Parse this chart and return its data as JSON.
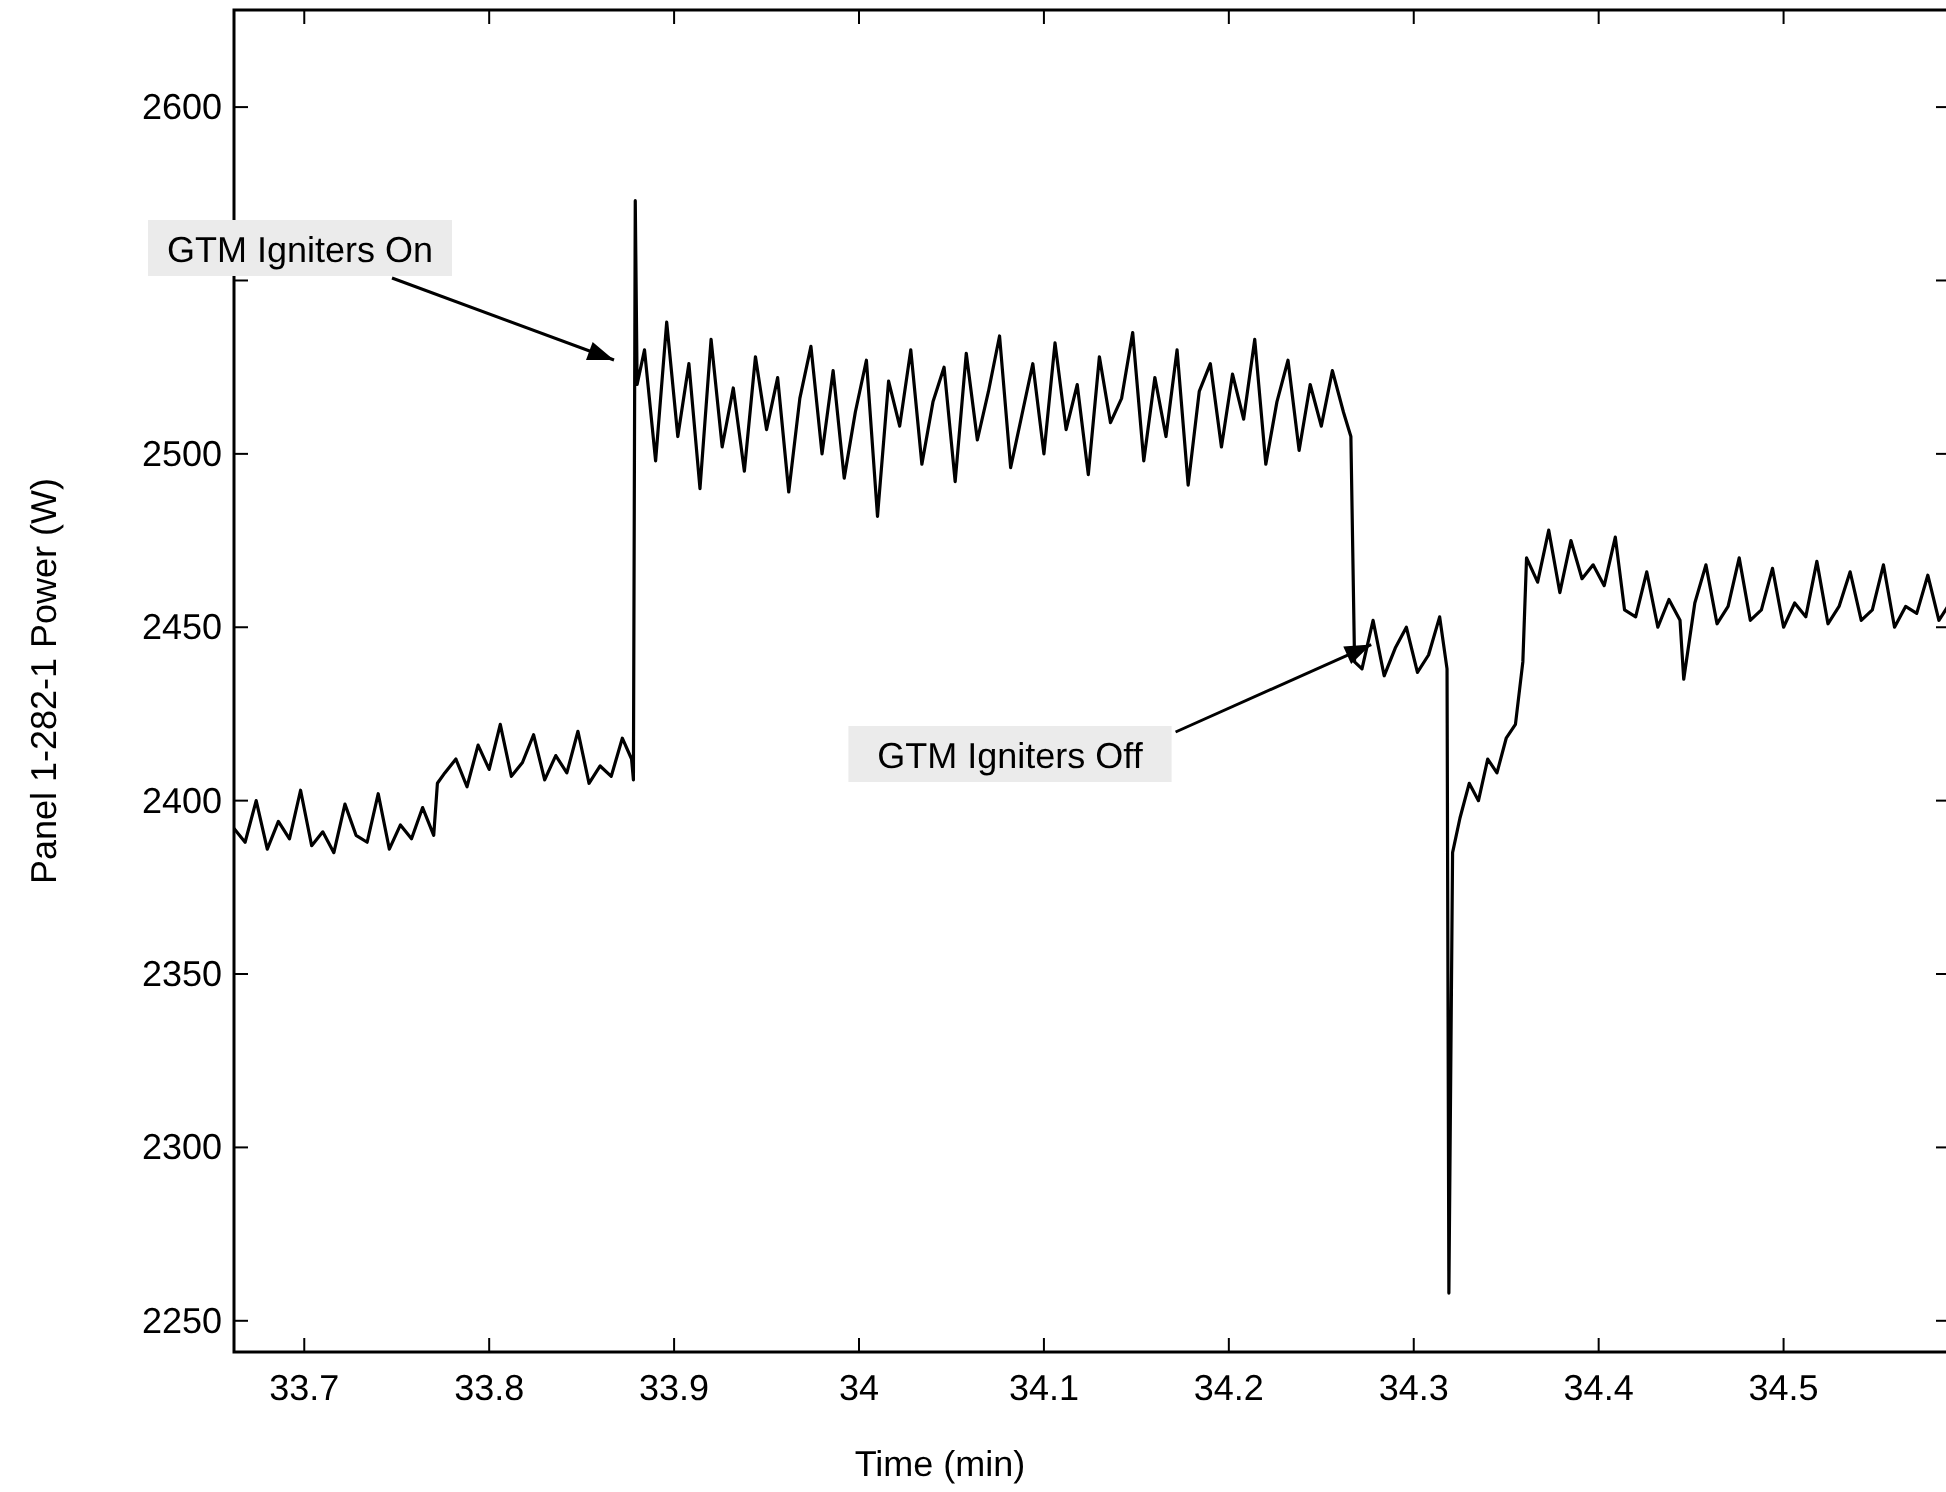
{
  "chart_data": {
    "type": "line",
    "xlabel": "Time (min)",
    "ylabel": "Panel 1-282-1 Power (W)",
    "xlim": [
      33.662,
      34.59
    ],
    "ylim": [
      2241,
      2628
    ],
    "xticks": [
      33.7,
      33.8,
      33.9,
      34,
      34.1,
      34.2,
      34.3,
      34.4,
      34.5
    ],
    "yticks": [
      2250,
      2300,
      2350,
      2400,
      2450,
      2500,
      {
        "value": 2550,
        "label": null
      },
      2600
    ],
    "marker": "none",
    "line_style": "solid",
    "annotations": [
      "GTM Igniters On",
      {
        "text": "GTM Igniters Off",
        "x": 34.277,
        "y": 2445
      }
    ],
    "series": [
      {
        "color": "#000000",
        "x": [
          33.662,
          33.668,
          33.674,
          33.68,
          33.686,
          33.692,
          33.698,
          33.704,
          33.71,
          33.716,
          33.722,
          33.728,
          33.734,
          33.74,
          33.746,
          33.752,
          33.758,
          33.764,
          33.77,
          33.772,
          33.776,
          33.782,
          33.788,
          33.794,
          33.8,
          33.806,
          33.812,
          33.818,
          33.824,
          33.83,
          33.836,
          33.842,
          33.848,
          33.854,
          33.86,
          33.866,
          33.872,
          33.877,
          33.878,
          33.879,
          33.88,
          33.884,
          33.89,
          33.896,
          33.902,
          33.908,
          33.914,
          33.92,
          33.926,
          33.932,
          33.938,
          33.944,
          33.95,
          33.956,
          33.962,
          33.968,
          33.974,
          33.98,
          33.986,
          33.992,
          33.998,
          34.004,
          34.01,
          34.016,
          34.022,
          34.028,
          34.034,
          34.04,
          34.046,
          34.052,
          34.058,
          34.064,
          34.07,
          34.076,
          34.082,
          34.088,
          34.094,
          34.1,
          34.106,
          34.112,
          34.118,
          34.124,
          34.13,
          34.136,
          34.142,
          34.148,
          34.154,
          34.16,
          34.166,
          34.172,
          34.178,
          34.184,
          34.19,
          34.196,
          34.202,
          34.208,
          34.214,
          34.22,
          34.226,
          34.232,
          34.238,
          34.244,
          34.25,
          34.256,
          34.262,
          34.266,
          34.268,
          34.272,
          34.278,
          34.284,
          34.29,
          34.296,
          34.302,
          34.308,
          34.314,
          34.318,
          34.319,
          34.321,
          34.325,
          34.33,
          34.335,
          34.34,
          34.345,
          34.35,
          34.355,
          34.359,
          34.361,
          34.367,
          34.373,
          34.379,
          34.385,
          34.391,
          34.397,
          34.403,
          34.409,
          34.414,
          34.42,
          34.426,
          34.432,
          34.438,
          34.444,
          34.446,
          34.452,
          34.458,
          34.464,
          34.47,
          34.476,
          34.482,
          34.488,
          34.494,
          34.5,
          34.506,
          34.512,
          34.518,
          34.524,
          34.53,
          34.536,
          34.542,
          34.548,
          34.554,
          34.56,
          34.566,
          34.572,
          34.578,
          34.584,
          34.59
        ],
        "values": [
          2392,
          2388,
          2400,
          2386,
          2394,
          2389,
          2403,
          2387,
          2391,
          2385,
          2399,
          2390,
          2388,
          2402,
          2386,
          2393,
          2389,
          2398,
          2390,
          2405,
          2408,
          2412,
          2404,
          2416,
          2409,
          2422,
          2407,
          2411,
          2419,
          2406,
          2413,
          2408,
          2420,
          2405,
          2410,
          2407,
          2418,
          2412,
          2406,
          2573,
          2520,
          2530,
          2498,
          2538,
          2505,
          2526,
          2490,
          2533,
          2502,
          2519,
          2495,
          2528,
          2507,
          2522,
          2489,
          2516,
          2531,
          2500,
          2524,
          2493,
          2512,
          2527,
          2482,
          2521,
          2508,
          2530,
          2497,
          2515,
          2525,
          2492,
          2529,
          2504,
          2518,
          2534,
          2496,
          2511,
          2526,
          2500,
          2532,
          2507,
          2520,
          2494,
          2528,
          2509,
          2516,
          2535,
          2498,
          2522,
          2505,
          2530,
          2491,
          2518,
          2526,
          2502,
          2523,
          2510,
          2533,
          2497,
          2515,
          2527,
          2501,
          2520,
          2508,
          2524,
          2512,
          2505,
          2440,
          2438,
          2452,
          2436,
          2444,
          2450,
          2437,
          2442,
          2453,
          2438,
          2258,
          2385,
          2395,
          2405,
          2400,
          2412,
          2408,
          2418,
          2422,
          2440,
          2470,
          2463,
          2478,
          2460,
          2475,
          2464,
          2468,
          2462,
          2476,
          2455,
          2453,
          2466,
          2450,
          2458,
          2452,
          2435,
          2457,
          2468,
          2451,
          2456,
          2470,
          2452,
          2455,
          2467,
          2450,
          2457,
          2453,
          2469,
          2451,
          2456,
          2466,
          2452,
          2455,
          2468,
          2450,
          2456,
          2454,
          2465,
          2452,
          2457
        ]
      }
    ]
  }
}
